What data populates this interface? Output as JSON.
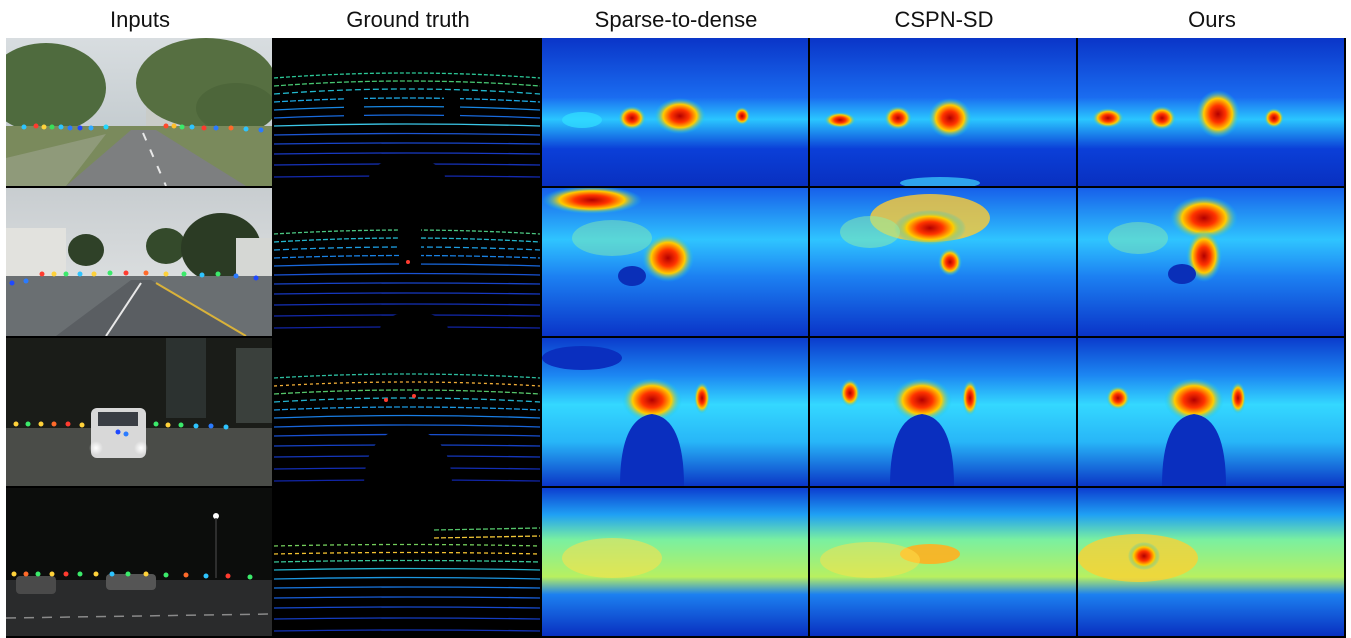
{
  "columns": [
    "Inputs",
    "Ground truth",
    "Sparse-to-dense",
    "CSPN-SD",
    "Ours"
  ],
  "rows": 4
}
